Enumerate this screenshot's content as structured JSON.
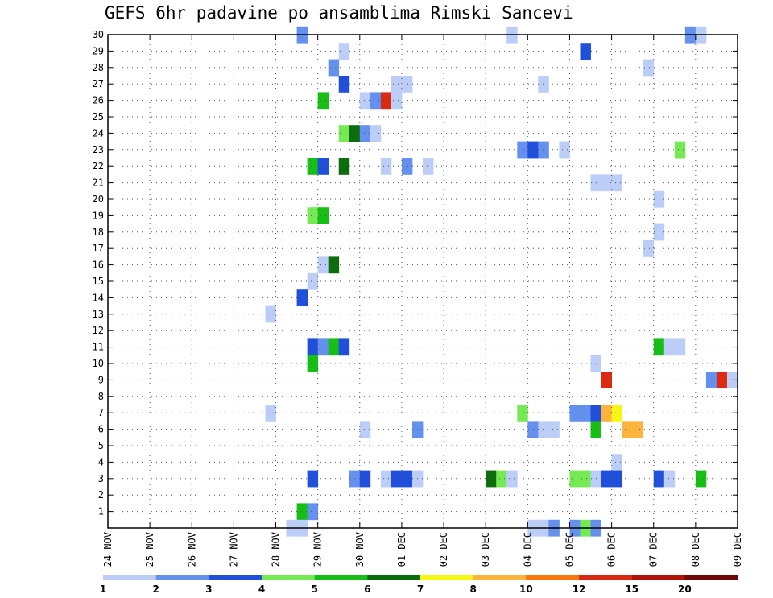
{
  "chart_data": {
    "type": "heatmap",
    "title": "GEFS 6hr padavine po ansamblima Rimski Sancevi",
    "xlabel": "",
    "ylabel": "",
    "x_tick_labels": [
      "24 NOV",
      "25 NOV",
      "26 NOV",
      "27 NOV",
      "28 NOV",
      "29 NOV",
      "30 NOV",
      "01 DEC",
      "02 DEC",
      "03 DEC",
      "04 DEC",
      "05 DEC",
      "06 DEC",
      "07 DEC",
      "08 DEC",
      "09 DEC"
    ],
    "y_tick_labels": [
      "1",
      "2",
      "3",
      "4",
      "5",
      "6",
      "7",
      "8",
      "9",
      "10",
      "11",
      "12",
      "13",
      "14",
      "15",
      "16",
      "17",
      "18",
      "19",
      "20",
      "21",
      "22",
      "23",
      "24",
      "25",
      "26",
      "27",
      "28",
      "29",
      "30"
    ],
    "xlim": [
      0,
      60
    ],
    "ylim": [
      0,
      30
    ],
    "grid": true,
    "legend_position": "bottom",
    "legend": {
      "labels": [
        "1",
        "2",
        "3",
        "4",
        "5",
        "6",
        "7",
        "8",
        "10",
        "12",
        "15",
        "20"
      ],
      "colors": [
        "#bccdf7",
        "#6490ee",
        "#1f4fdb",
        "#76ea54",
        "#16be16",
        "#0c6d0c",
        "#f7f716",
        "#fdb43c",
        "#f7770e",
        "#dc2a10",
        "#b01208",
        "#6e0a0a"
      ]
    },
    "cells_note": "each cell = [member, 6h step from 24 NOV 00Z, color class index]",
    "cells": [
      [
        30,
        18,
        1
      ],
      [
        30,
        38,
        0
      ],
      [
        30,
        55,
        1
      ],
      [
        30,
        56,
        0
      ],
      [
        29,
        22,
        0
      ],
      [
        29,
        45,
        2
      ],
      [
        28,
        21,
        1
      ],
      [
        28,
        51,
        0
      ],
      [
        27,
        22,
        2
      ],
      [
        27,
        27,
        0
      ],
      [
        27,
        28,
        0
      ],
      [
        27,
        41,
        0
      ],
      [
        26,
        20,
        4
      ],
      [
        26,
        24,
        0
      ],
      [
        26,
        25,
        1
      ],
      [
        26,
        26,
        9
      ],
      [
        26,
        27,
        0
      ],
      [
        24,
        22,
        3
      ],
      [
        24,
        23,
        5
      ],
      [
        24,
        24,
        1
      ],
      [
        24,
        25,
        0
      ],
      [
        23,
        39,
        1
      ],
      [
        23,
        40,
        2
      ],
      [
        23,
        41,
        1
      ],
      [
        23,
        43,
        0
      ],
      [
        23,
        54,
        3
      ],
      [
        22,
        19,
        4
      ],
      [
        22,
        20,
        2
      ],
      [
        22,
        22,
        5
      ],
      [
        22,
        26,
        0
      ],
      [
        22,
        28,
        1
      ],
      [
        22,
        30,
        0
      ],
      [
        21,
        46,
        0
      ],
      [
        21,
        47,
        0
      ],
      [
        21,
        48,
        0
      ],
      [
        20,
        52,
        0
      ],
      [
        19,
        19,
        3
      ],
      [
        19,
        20,
        4
      ],
      [
        18,
        52,
        0
      ],
      [
        17,
        51,
        0
      ],
      [
        16,
        20,
        0
      ],
      [
        16,
        21,
        5
      ],
      [
        15,
        19,
        0
      ],
      [
        14,
        18,
        2
      ],
      [
        13,
        15,
        0
      ],
      [
        11,
        19,
        2
      ],
      [
        11,
        20,
        1
      ],
      [
        11,
        21,
        4
      ],
      [
        11,
        22,
        2
      ],
      [
        11,
        52,
        4
      ],
      [
        11,
        53,
        0
      ],
      [
        11,
        54,
        0
      ],
      [
        10,
        19,
        4
      ],
      [
        10,
        46,
        0
      ],
      [
        9,
        47,
        9
      ],
      [
        9,
        57,
        1
      ],
      [
        9,
        58,
        9
      ],
      [
        9,
        59,
        0
      ],
      [
        7,
        15,
        0
      ],
      [
        7,
        39,
        3
      ],
      [
        7,
        44,
        1
      ],
      [
        7,
        45,
        1
      ],
      [
        7,
        46,
        2
      ],
      [
        7,
        47,
        7
      ],
      [
        7,
        48,
        6
      ],
      [
        6,
        24,
        0
      ],
      [
        6,
        29,
        1
      ],
      [
        6,
        40,
        1
      ],
      [
        6,
        41,
        0
      ],
      [
        6,
        42,
        0
      ],
      [
        6,
        46,
        4
      ],
      [
        6,
        49,
        7
      ],
      [
        6,
        50,
        7
      ],
      [
        4,
        48,
        0
      ],
      [
        3,
        19,
        2
      ],
      [
        3,
        23,
        1
      ],
      [
        3,
        24,
        2
      ],
      [
        3,
        26,
        0
      ],
      [
        3,
        27,
        2
      ],
      [
        3,
        28,
        2
      ],
      [
        3,
        29,
        0
      ],
      [
        3,
        36,
        5
      ],
      [
        3,
        37,
        3
      ],
      [
        3,
        38,
        0
      ],
      [
        3,
        44,
        3
      ],
      [
        3,
        45,
        3
      ],
      [
        3,
        46,
        0
      ],
      [
        3,
        47,
        2
      ],
      [
        3,
        48,
        2
      ],
      [
        3,
        52,
        2
      ],
      [
        3,
        53,
        0
      ],
      [
        3,
        56,
        4
      ],
      [
        1,
        18,
        4
      ],
      [
        1,
        19,
        1
      ],
      [
        0,
        17,
        0
      ],
      [
        0,
        18,
        0
      ],
      [
        0,
        40,
        0
      ],
      [
        0,
        41,
        0
      ],
      [
        0,
        42,
        1
      ],
      [
        0,
        44,
        1
      ],
      [
        0,
        45,
        3
      ],
      [
        0,
        46,
        1
      ]
    ]
  }
}
